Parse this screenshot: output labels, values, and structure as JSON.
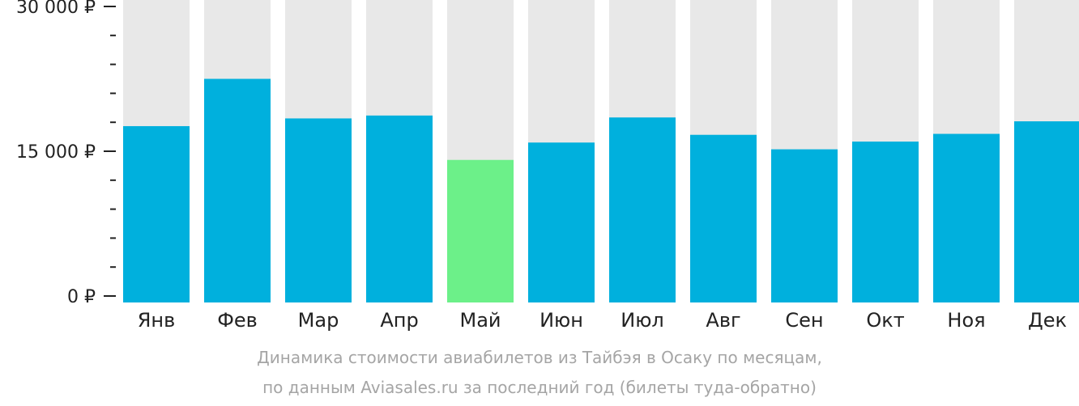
{
  "caption": {
    "line1": "Динамика стоимости авиабилетов из Тайбэя в Осаку по месяцам,",
    "line2": "по данным Aviasales.ru за последний год (билеты туда-обратно)"
  },
  "colors": {
    "bar": "#00b0dd",
    "highlight": "#6cf089",
    "background_bar": "#e8e8e8",
    "text": "#222222",
    "caption": "#a5a5a5"
  },
  "chart_data": {
    "type": "bar",
    "categories": [
      "Янв",
      "Фев",
      "Мар",
      "Апр",
      "Май",
      "Июн",
      "Июл",
      "Авг",
      "Сен",
      "Окт",
      "Ноя",
      "Дек"
    ],
    "values": [
      17600,
      22500,
      18400,
      18700,
      14100,
      15900,
      18500,
      16700,
      15200,
      16000,
      16800,
      18100
    ],
    "highlight_index": 4,
    "ylim": [
      0,
      30000
    ],
    "yticks": [
      {
        "value": 0,
        "label": "0 ₽"
      },
      {
        "value": 15000,
        "label": "15 000 ₽"
      },
      {
        "value": 30000,
        "label": "30 000 ₽"
      }
    ],
    "minor_tick_step": 3000,
    "grid": false,
    "legend": "none"
  }
}
